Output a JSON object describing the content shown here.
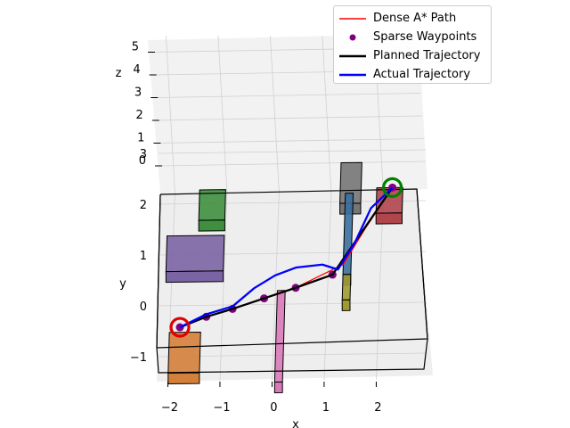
{
  "chart_data": {
    "type": "line",
    "title": "",
    "projection": "3d",
    "xlabel": "x",
    "ylabel": "y",
    "zlabel": "z",
    "x_ticks": [
      "−2",
      "−1",
      "0",
      "1",
      "2"
    ],
    "y_ticks": [
      "−1",
      "0",
      "1",
      "2",
      "3"
    ],
    "z_ticks": [
      "0",
      "1",
      "2",
      "3",
      "4",
      "5"
    ],
    "xlim": [
      -2.2,
      3.0
    ],
    "ylim": [
      -1.5,
      3.2
    ],
    "zlim": [
      0,
      5
    ],
    "legend_position": "top-right",
    "series": [
      {
        "name": "Dense A* Path",
        "color": "#ff0000",
        "style": "line",
        "x": [
          -1.8,
          -1.3,
          -0.8,
          -0.2,
          0.4,
          0.8,
          1.3,
          1.7,
          2.2
        ],
        "y": [
          -0.4,
          -0.2,
          -0.05,
          0.15,
          0.35,
          0.55,
          0.8,
          1.5,
          2.3
        ]
      },
      {
        "name": "Sparse Waypoints",
        "color": "#800080",
        "style": "markers",
        "x": [
          -1.8,
          -1.3,
          -0.8,
          -0.2,
          0.4,
          1.1,
          2.2
        ],
        "y": [
          -0.4,
          -0.2,
          -0.05,
          0.15,
          0.35,
          0.6,
          2.3
        ]
      },
      {
        "name": "Planned Trajectory",
        "color": "#000000",
        "style": "line",
        "x": [
          -1.8,
          -1.3,
          -0.8,
          -0.2,
          0.4,
          1.1,
          2.2
        ],
        "y": [
          -0.4,
          -0.2,
          -0.05,
          0.15,
          0.35,
          0.6,
          2.3
        ]
      },
      {
        "name": "Actual Trajectory",
        "color": "#0000ff",
        "style": "line",
        "x": [
          -1.8,
          -1.3,
          -0.8,
          -0.4,
          0.0,
          0.4,
          0.9,
          1.2,
          1.5,
          1.8,
          2.2
        ],
        "y": [
          -0.4,
          -0.15,
          0.0,
          0.35,
          0.6,
          0.75,
          0.8,
          0.7,
          1.2,
          1.9,
          2.3
        ]
      }
    ],
    "start": {
      "x": -1.8,
      "y": -0.4,
      "color": "#e00000"
    },
    "goal": {
      "x": 2.2,
      "y": 2.3,
      "color": "#008000"
    },
    "obstacles": [
      {
        "name": "green-box",
        "color": "#3f8f3f",
        "x": [
          -1.5,
          -1.0
        ],
        "y": [
          1.7,
          2.3
        ]
      },
      {
        "name": "purple-box",
        "color": "#7b64a4",
        "x": [
          -2.1,
          -1.0
        ],
        "y": [
          0.7,
          1.4
        ]
      },
      {
        "name": "orange-box",
        "color": "#d3803a",
        "x": [
          -2.0,
          -1.4
        ],
        "y": [
          -1.3,
          -0.5
        ]
      },
      {
        "name": "gray-box",
        "color": "#767676",
        "x": [
          1.2,
          1.6
        ],
        "y": [
          2.0,
          2.8
        ]
      },
      {
        "name": "red-box",
        "color": "#b0454c",
        "x": [
          1.9,
          2.4
        ],
        "y": [
          1.8,
          2.3
        ]
      },
      {
        "name": "blue-pole",
        "color": "#3a6fa0",
        "x": [
          1.3,
          1.45
        ],
        "y": [
          0.6,
          2.2
        ]
      },
      {
        "name": "olive-pole",
        "color": "#a09a30",
        "x": [
          1.3,
          1.45
        ],
        "y": [
          0.1,
          0.6
        ]
      },
      {
        "name": "pink-pole",
        "color": "#d979b8",
        "x": [
          0.05,
          0.2
        ],
        "y": [
          -1.5,
          0.3
        ]
      }
    ]
  }
}
